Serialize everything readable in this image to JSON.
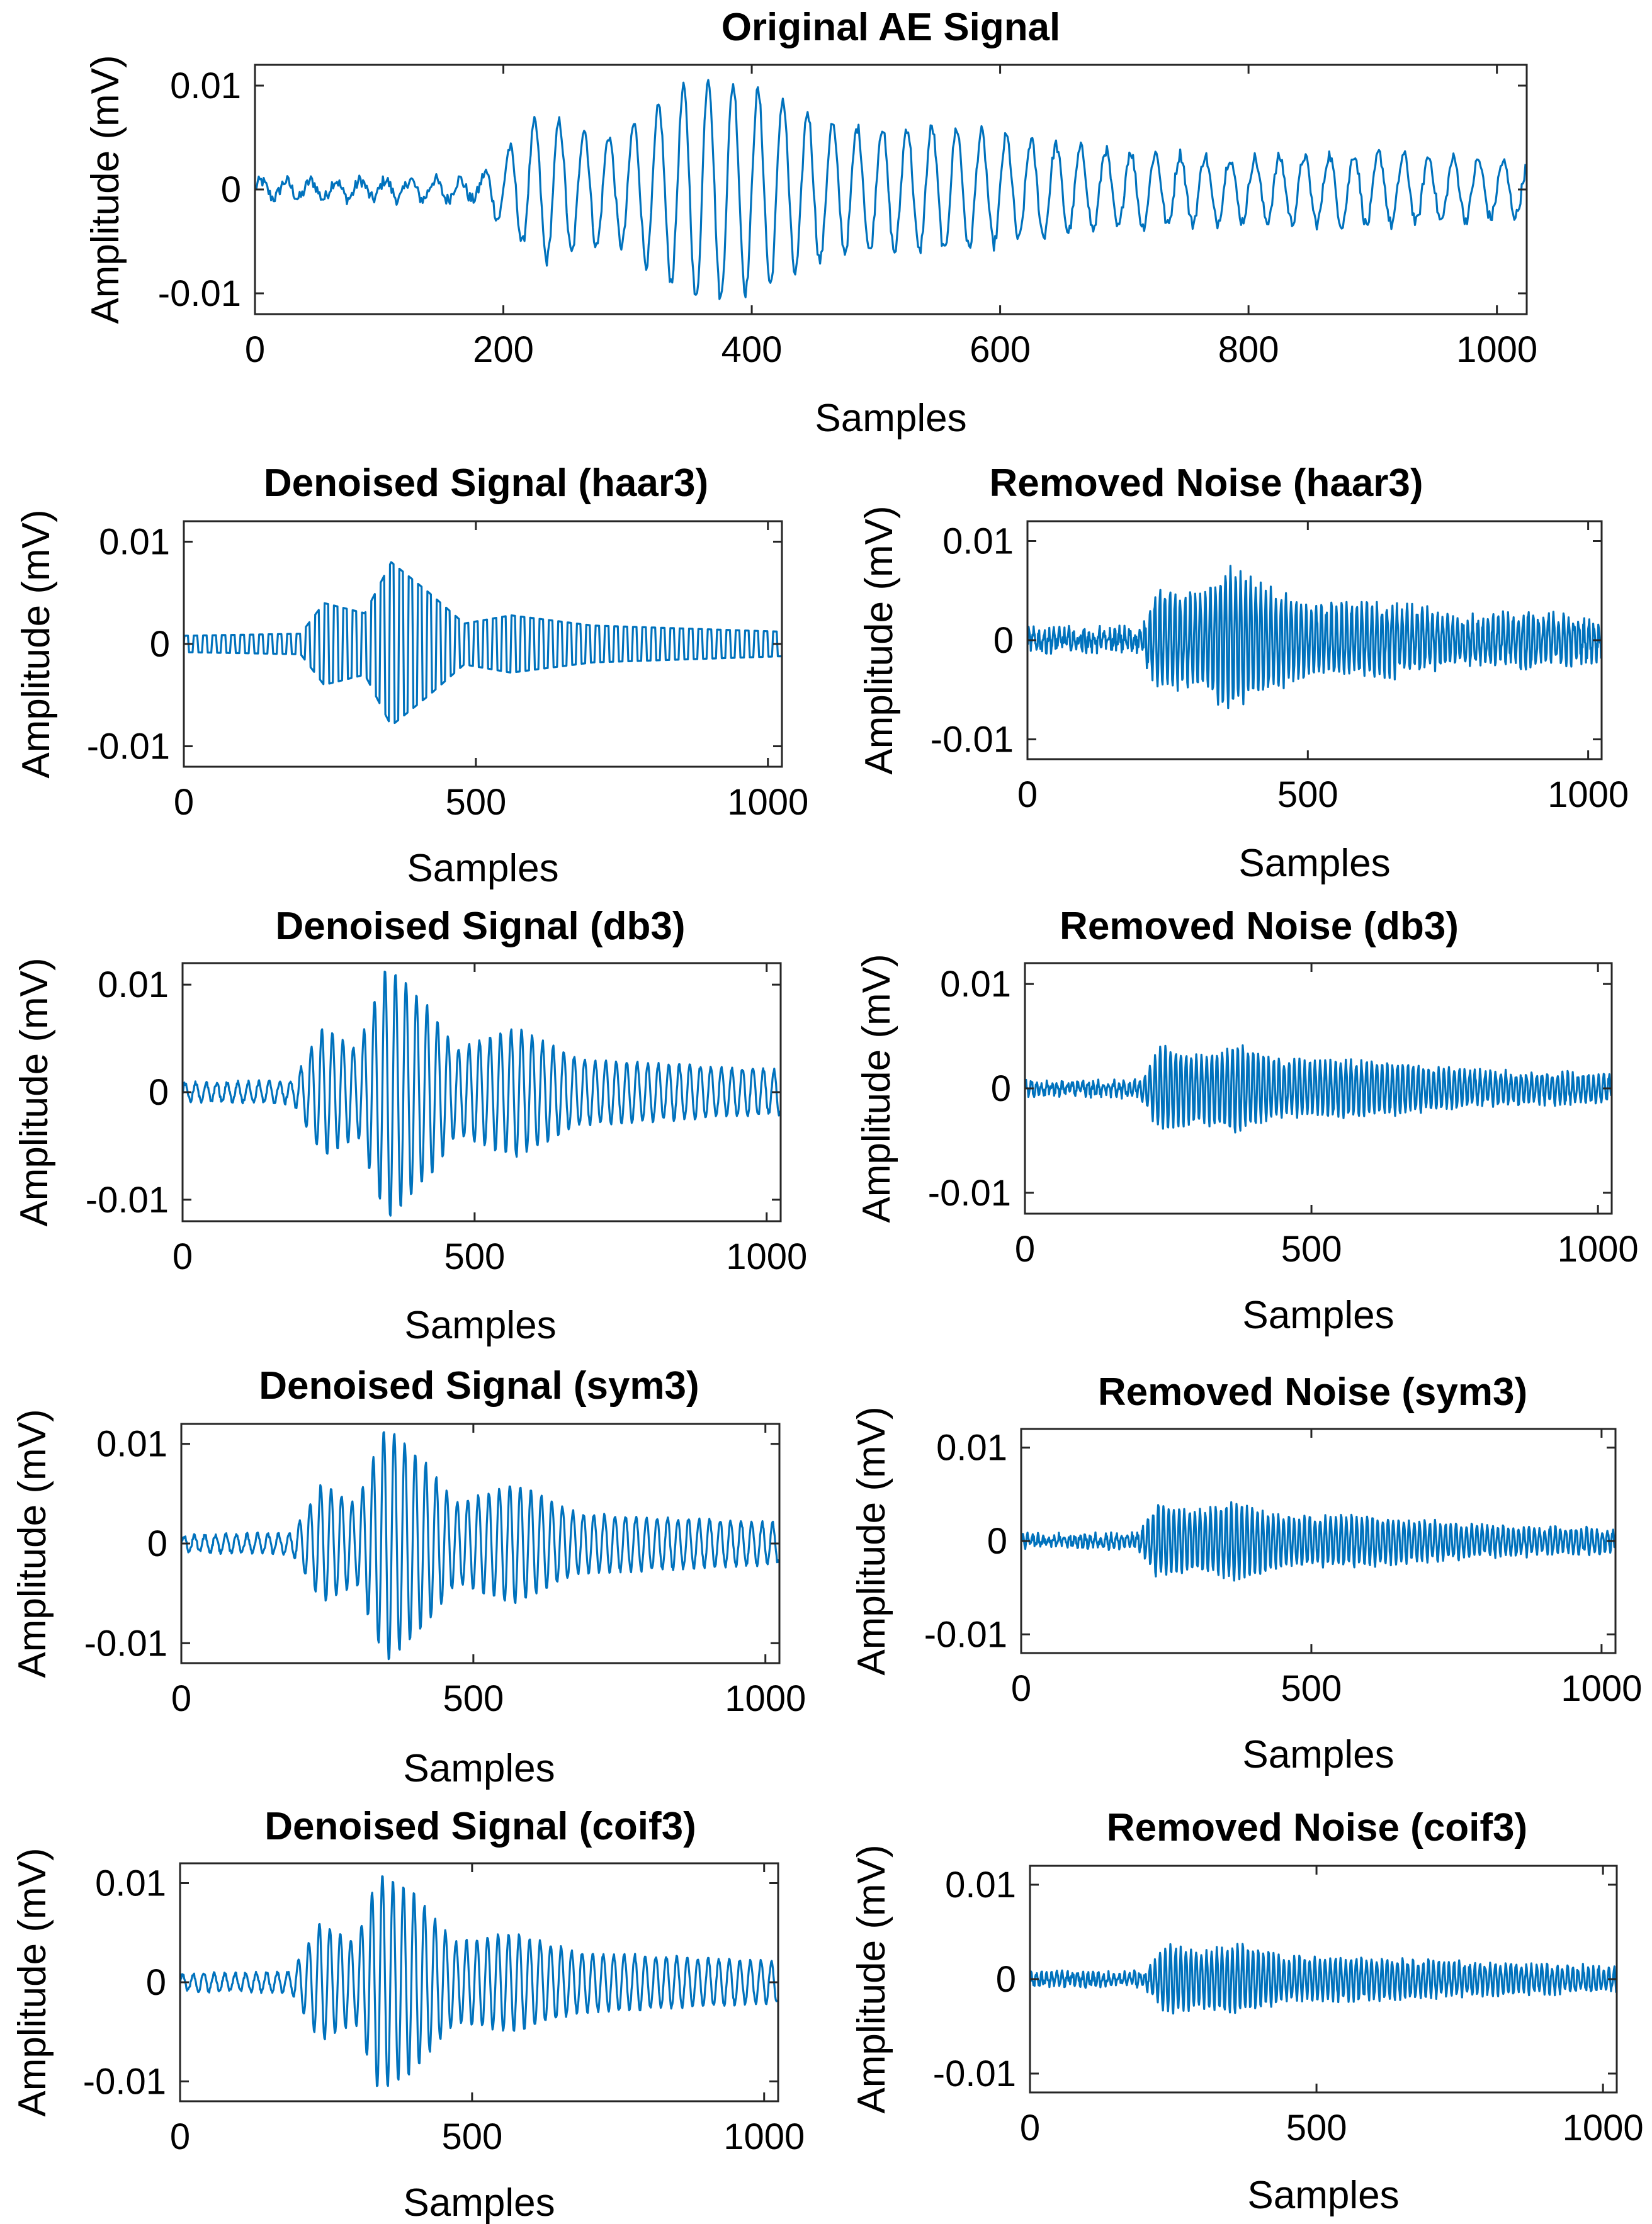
{
  "figure": {
    "background": "#ffffff",
    "line_color": "#0072BD",
    "axis_color": "#262626"
  },
  "chart_data": [
    {
      "id": "original",
      "type": "line",
      "title": "Original AE Signal",
      "xlabel": "Samples",
      "ylabel": "Amplitude (mV)",
      "xlim": [
        0,
        1024
      ],
      "ylim": [
        -0.012,
        0.012
      ],
      "xticks": [
        0,
        200,
        400,
        600,
        800,
        1000
      ],
      "xtick_labels": [
        "0",
        "200",
        "400",
        "600",
        "800",
        "1000"
      ],
      "yticks": [
        -0.01,
        0,
        0.01
      ],
      "ytick_labels": [
        "-0.01",
        "0",
        "0.01"
      ],
      "signal": {
        "samples": 1024,
        "noise_amplitude": 0.0006,
        "envelope_points": [
          [
            0,
            0.0008
          ],
          [
            180,
            0.001
          ],
          [
            230,
            0.007
          ],
          [
            290,
            0.005
          ],
          [
            360,
            0.011
          ],
          [
            420,
            0.009
          ],
          [
            470,
            0.006
          ],
          [
            560,
            0.006
          ],
          [
            660,
            0.004
          ],
          [
            800,
            0.003
          ],
          [
            900,
            0.0035
          ],
          [
            1024,
            0.0025
          ]
        ],
        "period_samples": 20,
        "waveform": "sine"
      }
    },
    {
      "id": "denoised_haar3",
      "type": "line",
      "title": "Denoised Signal (haar3)",
      "xlabel": "Samples",
      "ylabel": "Amplitude (mV)",
      "xlim": [
        0,
        1024
      ],
      "ylim": [
        -0.012,
        0.012
      ],
      "xticks": [
        0,
        500,
        1000
      ],
      "xtick_labels": [
        "0",
        "500",
        "1000"
      ],
      "yticks": [
        -0.01,
        0,
        0.01
      ],
      "ytick_labels": [
        "-0.01",
        "0",
        "0.01"
      ],
      "signal": {
        "samples": 1024,
        "noise_amplitude": 0,
        "envelope_points": [
          [
            0,
            0.0008
          ],
          [
            200,
            0.001
          ],
          [
            240,
            0.004
          ],
          [
            310,
            0.003
          ],
          [
            355,
            0.008
          ],
          [
            420,
            0.005
          ],
          [
            480,
            0.002
          ],
          [
            560,
            0.0028
          ],
          [
            700,
            0.0018
          ],
          [
            1024,
            0.0012
          ]
        ],
        "period_samples": 16,
        "waveform": "square"
      }
    },
    {
      "id": "noise_haar3",
      "type": "line",
      "title": "Removed Noise (haar3)",
      "xlabel": "Samples",
      "ylabel": "Amplitude (mV)",
      "xlim": [
        0,
        1024
      ],
      "ylim": [
        -0.012,
        0.012
      ],
      "xticks": [
        0,
        500,
        1000
      ],
      "xtick_labels": [
        "0",
        "500",
        "1000"
      ],
      "yticks": [
        -0.01,
        0,
        0.01
      ],
      "ytick_labels": [
        "-0.01",
        "0",
        "0.01"
      ],
      "signal": {
        "samples": 1024,
        "noise_amplitude": 0.0008,
        "envelope_points": [
          [
            0,
            0.0006
          ],
          [
            200,
            0.0008
          ],
          [
            235,
            0.005
          ],
          [
            300,
            0.004
          ],
          [
            360,
            0.007
          ],
          [
            420,
            0.005
          ],
          [
            520,
            0.003
          ],
          [
            620,
            0.0035
          ],
          [
            800,
            0.002
          ],
          [
            900,
            0.0025
          ],
          [
            1024,
            0.0015
          ]
        ],
        "period_samples": 9,
        "waveform": "sine"
      }
    },
    {
      "id": "denoised_db3",
      "type": "line",
      "title": "Denoised Signal (db3)",
      "xlabel": "Samples",
      "ylabel": "Amplitude (mV)",
      "xlim": [
        0,
        1024
      ],
      "ylim": [
        -0.012,
        0.012
      ],
      "xticks": [
        0,
        500,
        1000
      ],
      "xtick_labels": [
        "0",
        "500",
        "1000"
      ],
      "yticks": [
        -0.01,
        0,
        0.01
      ],
      "ytick_labels": [
        "-0.01",
        "0",
        "0.01"
      ],
      "signal": {
        "samples": 1024,
        "noise_amplitude": 0.0002,
        "envelope_points": [
          [
            0,
            0.0008
          ],
          [
            190,
            0.001
          ],
          [
            240,
            0.006
          ],
          [
            300,
            0.004
          ],
          [
            350,
            0.012
          ],
          [
            420,
            0.008
          ],
          [
            470,
            0.004
          ],
          [
            570,
            0.006
          ],
          [
            680,
            0.003
          ],
          [
            1024,
            0.002
          ]
        ],
        "period_samples": 18,
        "waveform": "sine"
      }
    },
    {
      "id": "noise_db3",
      "type": "line",
      "title": "Removed Noise (db3)",
      "xlabel": "Samples",
      "ylabel": "Amplitude (mV)",
      "xlim": [
        0,
        1024
      ],
      "ylim": [
        -0.012,
        0.012
      ],
      "xticks": [
        0,
        500,
        1000
      ],
      "xtick_labels": [
        "0",
        "500",
        "1000"
      ],
      "yticks": [
        -0.01,
        0,
        0.01
      ],
      "ytick_labels": [
        "-0.01",
        "0",
        "0.01"
      ],
      "signal": {
        "samples": 1024,
        "noise_amplitude": 0.0004,
        "envelope_points": [
          [
            0,
            0.0005
          ],
          [
            200,
            0.0006
          ],
          [
            235,
            0.004
          ],
          [
            300,
            0.003
          ],
          [
            370,
            0.004
          ],
          [
            450,
            0.0025
          ],
          [
            600,
            0.0025
          ],
          [
            800,
            0.0015
          ],
          [
            1024,
            0.0012
          ]
        ],
        "period_samples": 9,
        "waveform": "sine"
      }
    },
    {
      "id": "denoised_sym3",
      "type": "line",
      "title": "Denoised Signal (sym3)",
      "xlabel": "Samples",
      "ylabel": "Amplitude (mV)",
      "xlim": [
        0,
        1024
      ],
      "ylim": [
        -0.012,
        0.012
      ],
      "xticks": [
        0,
        500,
        1000
      ],
      "xtick_labels": [
        "0",
        "500",
        "1000"
      ],
      "yticks": [
        -0.01,
        0,
        0.01
      ],
      "ytick_labels": [
        "-0.01",
        "0",
        "0.01"
      ],
      "signal": {
        "samples": 1024,
        "noise_amplitude": 0.0002,
        "envelope_points": [
          [
            0,
            0.0008
          ],
          [
            190,
            0.001
          ],
          [
            240,
            0.006
          ],
          [
            300,
            0.004
          ],
          [
            350,
            0.012
          ],
          [
            420,
            0.008
          ],
          [
            470,
            0.004
          ],
          [
            570,
            0.006
          ],
          [
            680,
            0.003
          ],
          [
            1024,
            0.002
          ]
        ],
        "period_samples": 18,
        "waveform": "sine"
      }
    },
    {
      "id": "noise_sym3",
      "type": "line",
      "title": "Removed Noise (sym3)",
      "xlabel": "Samples",
      "ylabel": "Amplitude (mV)",
      "xlim": [
        0,
        1024
      ],
      "ylim": [
        -0.012,
        0.012
      ],
      "xticks": [
        0,
        500,
        1000
      ],
      "xtick_labels": [
        "0",
        "500",
        "1000"
      ],
      "yticks": [
        -0.01,
        0,
        0.01
      ],
      "ytick_labels": [
        "-0.01",
        "0",
        "0.01"
      ],
      "signal": {
        "samples": 1024,
        "noise_amplitude": 0.0004,
        "envelope_points": [
          [
            0,
            0.0005
          ],
          [
            200,
            0.0006
          ],
          [
            235,
            0.0038
          ],
          [
            300,
            0.003
          ],
          [
            370,
            0.004
          ],
          [
            450,
            0.0025
          ],
          [
            600,
            0.0025
          ],
          [
            800,
            0.0015
          ],
          [
            1024,
            0.0012
          ]
        ],
        "period_samples": 9,
        "waveform": "sine"
      }
    },
    {
      "id": "denoised_coif3",
      "type": "line",
      "title": "Denoised Signal (coif3)",
      "xlabel": "Samples",
      "ylabel": "Amplitude (mV)",
      "xlim": [
        0,
        1024
      ],
      "ylim": [
        -0.012,
        0.012
      ],
      "xticks": [
        0,
        500,
        1000
      ],
      "xtick_labels": [
        "0",
        "500",
        "1000"
      ],
      "yticks": [
        -0.01,
        0,
        0.01
      ],
      "ytick_labels": [
        "-0.01",
        "0",
        "0.01"
      ],
      "signal": {
        "samples": 1024,
        "noise_amplitude": 0.0002,
        "envelope_points": [
          [
            0,
            0.0008
          ],
          [
            190,
            0.001
          ],
          [
            240,
            0.006
          ],
          [
            300,
            0.004
          ],
          [
            340,
            0.011
          ],
          [
            400,
            0.009
          ],
          [
            470,
            0.004
          ],
          [
            570,
            0.005
          ],
          [
            680,
            0.003
          ],
          [
            1024,
            0.002
          ]
        ],
        "period_samples": 18,
        "waveform": "sine"
      }
    },
    {
      "id": "noise_coif3",
      "type": "line",
      "title": "Removed Noise (coif3)",
      "xlabel": "Samples",
      "ylabel": "Amplitude (mV)",
      "xlim": [
        0,
        1024
      ],
      "ylim": [
        -0.012,
        0.012
      ],
      "xticks": [
        0,
        500,
        1000
      ],
      "xtick_labels": [
        "0",
        "500",
        "1000"
      ],
      "yticks": [
        -0.01,
        0,
        0.01
      ],
      "ytick_labels": [
        "-0.01",
        "0",
        "0.01"
      ],
      "signal": {
        "samples": 1024,
        "noise_amplitude": 0.0004,
        "envelope_points": [
          [
            0,
            0.0005
          ],
          [
            200,
            0.0006
          ],
          [
            235,
            0.0035
          ],
          [
            300,
            0.0028
          ],
          [
            370,
            0.0035
          ],
          [
            450,
            0.0022
          ],
          [
            600,
            0.002
          ],
          [
            800,
            0.0015
          ],
          [
            1024,
            0.0012
          ]
        ],
        "period_samples": 9,
        "waveform": "sine"
      }
    }
  ]
}
